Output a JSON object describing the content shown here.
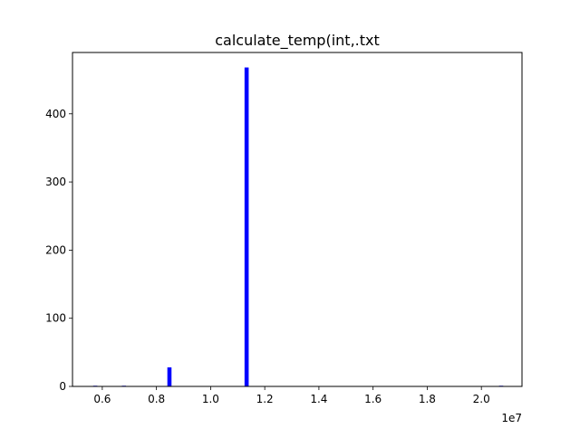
{
  "chart_data": {
    "type": "bar",
    "title": "calculate_temp(int,.txt",
    "xlabel": "",
    "ylabel": "",
    "x_offset_label": "1e7",
    "xlim": [
      0.49,
      2.15
    ],
    "ylim": [
      0,
      490
    ],
    "x_ticks": [
      0.6,
      0.8,
      1.0,
      1.2,
      1.4,
      1.6,
      1.8,
      2.0
    ],
    "x_tick_labels": [
      "0.6",
      "0.8",
      "1.0",
      "1.2",
      "1.4",
      "1.6",
      "1.8",
      "2.0"
    ],
    "y_ticks": [
      0,
      100,
      200,
      300,
      400
    ],
    "y_tick_labels": [
      "0",
      "100",
      "200",
      "300",
      "400"
    ],
    "bar_color": "#0000ff",
    "bin_width": 0.0153,
    "bars": [
      {
        "x": 0.574,
        "value": 1
      },
      {
        "x": 0.68,
        "value": 1
      },
      {
        "x": 0.848,
        "value": 28
      },
      {
        "x": 1.133,
        "value": 468
      },
      {
        "x": 2.073,
        "value": 1
      }
    ],
    "grid": false,
    "legend": "none"
  }
}
